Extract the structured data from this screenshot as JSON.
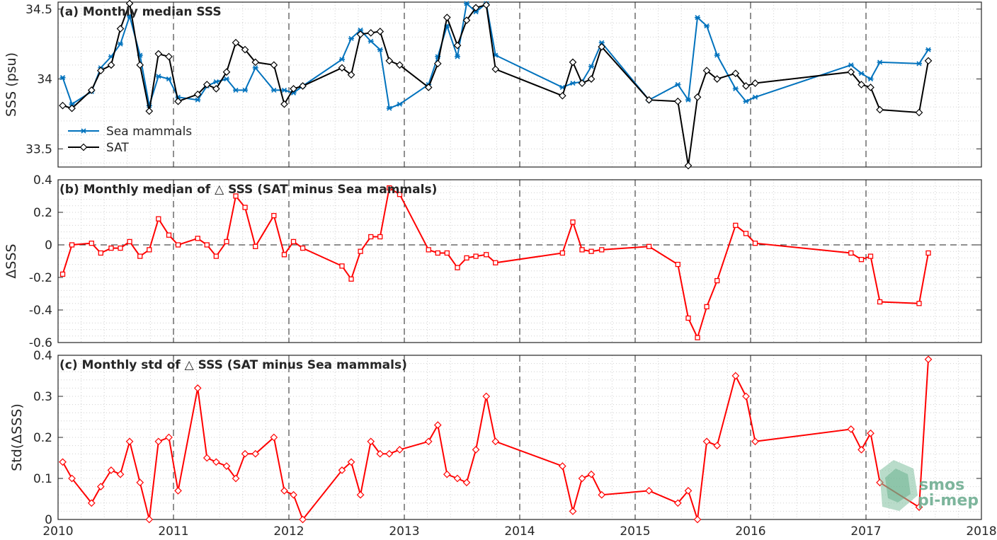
{
  "colors": {
    "sea_mammals": "#0072BD",
    "sat": "#000000",
    "delta": "#FF0000",
    "grid": "#d0d0d0",
    "axis": "#262626"
  },
  "logo": {
    "line1": "smos",
    "line2": "pi-mep"
  },
  "chart_data": [
    {
      "type": "line",
      "title": "(a) Monthly median SSS",
      "ylabel": "SSS (psu)",
      "xlim": [
        2010,
        2018
      ],
      "ylim": [
        33.37,
        34.55
      ],
      "yticks": [
        33.5,
        34,
        34.5
      ],
      "ytick_labels": [
        "33.5",
        "34",
        "34.5"
      ],
      "xticks": [
        2010,
        2011,
        2012,
        2013,
        2014,
        2015,
        2016,
        2017,
        2018
      ],
      "xtick_labels": [],
      "legend": {
        "position": "bottom-left"
      },
      "series": [
        {
          "name": "Sea mammals",
          "marker": "asterisk",
          "color": "#0072BD",
          "points": [
            [
              2010.04,
              34.01
            ],
            [
              2010.12,
              33.82
            ],
            [
              2010.29,
              33.91
            ],
            [
              2010.37,
              34.08
            ],
            [
              2010.46,
              34.16
            ],
            [
              2010.54,
              34.25
            ],
            [
              2010.62,
              34.45
            ],
            [
              2010.71,
              34.17
            ],
            [
              2010.79,
              33.81
            ],
            [
              2010.87,
              34.02
            ],
            [
              2010.96,
              34.0
            ],
            [
              2011.04,
              33.87
            ],
            [
              2011.21,
              33.85
            ],
            [
              2011.29,
              33.95
            ],
            [
              2011.37,
              33.98
            ],
            [
              2011.46,
              34.0
            ],
            [
              2011.54,
              33.92
            ],
            [
              2011.62,
              33.92
            ],
            [
              2011.71,
              34.08
            ],
            [
              2011.87,
              33.92
            ],
            [
              2011.96,
              33.92
            ],
            [
              2012.04,
              33.9
            ],
            [
              2012.12,
              33.95
            ],
            [
              2012.46,
              34.14
            ],
            [
              2012.54,
              34.29
            ],
            [
              2012.62,
              34.35
            ],
            [
              2012.71,
              34.27
            ],
            [
              2012.79,
              34.21
            ],
            [
              2012.87,
              33.79
            ],
            [
              2012.96,
              33.82
            ],
            [
              2013.21,
              33.96
            ],
            [
              2013.29,
              34.16
            ],
            [
              2013.37,
              34.38
            ],
            [
              2013.46,
              34.16
            ],
            [
              2013.54,
              34.54
            ],
            [
              2013.62,
              34.48
            ],
            [
              2013.71,
              34.54
            ],
            [
              2013.79,
              34.17
            ],
            [
              2014.37,
              33.94
            ],
            [
              2014.46,
              33.97
            ],
            [
              2014.54,
              33.98
            ],
            [
              2014.62,
              34.09
            ],
            [
              2014.71,
              34.26
            ],
            [
              2015.12,
              33.85
            ],
            [
              2015.37,
              33.96
            ],
            [
              2015.46,
              33.85
            ],
            [
              2015.54,
              34.44
            ],
            [
              2015.62,
              34.38
            ],
            [
              2015.71,
              34.17
            ],
            [
              2015.87,
              33.93
            ],
            [
              2015.96,
              33.84
            ],
            [
              2016.04,
              33.87
            ],
            [
              2016.87,
              34.1
            ],
            [
              2016.96,
              34.04
            ],
            [
              2017.04,
              34.0
            ],
            [
              2017.12,
              34.12
            ],
            [
              2017.46,
              34.11
            ],
            [
              2017.54,
              34.21
            ]
          ]
        },
        {
          "name": "SAT",
          "marker": "diamond",
          "color": "#000000",
          "points": [
            [
              2010.04,
              33.81
            ],
            [
              2010.12,
              33.79
            ],
            [
              2010.29,
              33.92
            ],
            [
              2010.37,
              34.06
            ],
            [
              2010.46,
              34.1
            ],
            [
              2010.54,
              34.36
            ],
            [
              2010.62,
              34.54
            ],
            [
              2010.71,
              34.1
            ],
            [
              2010.79,
              33.77
            ],
            [
              2010.87,
              34.18
            ],
            [
              2010.96,
              34.16
            ],
            [
              2011.04,
              33.84
            ],
            [
              2011.21,
              33.89
            ],
            [
              2011.29,
              33.96
            ],
            [
              2011.37,
              33.93
            ],
            [
              2011.46,
              34.05
            ],
            [
              2011.54,
              34.26
            ],
            [
              2011.62,
              34.21
            ],
            [
              2011.71,
              34.12
            ],
            [
              2011.87,
              34.1
            ],
            [
              2011.96,
              33.82
            ],
            [
              2012.04,
              33.93
            ],
            [
              2012.12,
              33.95
            ],
            [
              2012.46,
              34.08
            ],
            [
              2012.54,
              34.03
            ],
            [
              2012.62,
              34.32
            ],
            [
              2012.71,
              34.33
            ],
            [
              2012.79,
              34.34
            ],
            [
              2012.87,
              34.13
            ],
            [
              2012.96,
              34.1
            ],
            [
              2013.21,
              33.94
            ],
            [
              2013.29,
              34.11
            ],
            [
              2013.37,
              34.44
            ],
            [
              2013.46,
              34.24
            ],
            [
              2013.54,
              34.42
            ],
            [
              2013.62,
              34.51
            ],
            [
              2013.71,
              34.53
            ],
            [
              2013.79,
              34.07
            ],
            [
              2014.37,
              33.88
            ],
            [
              2014.46,
              34.12
            ],
            [
              2014.54,
              33.97
            ],
            [
              2014.62,
              34.0
            ],
            [
              2014.71,
              34.23
            ],
            [
              2015.12,
              33.85
            ],
            [
              2015.37,
              33.84
            ],
            [
              2015.46,
              33.38
            ],
            [
              2015.54,
              33.87
            ],
            [
              2015.62,
              34.06
            ],
            [
              2015.71,
              34.0
            ],
            [
              2015.87,
              34.04
            ],
            [
              2015.96,
              33.95
            ],
            [
              2016.04,
              33.97
            ],
            [
              2016.87,
              34.05
            ],
            [
              2016.96,
              33.96
            ],
            [
              2017.04,
              33.94
            ],
            [
              2017.12,
              33.78
            ],
            [
              2017.46,
              33.76
            ],
            [
              2017.54,
              34.13
            ]
          ]
        }
      ]
    },
    {
      "type": "line",
      "title": "(b) Monthly median of △ SSS (SAT minus Sea mammals)",
      "ylabel": "ΔSSS",
      "xlim": [
        2010,
        2018
      ],
      "ylim": [
        -0.6,
        0.4
      ],
      "yticks": [
        -0.6,
        -0.4,
        -0.2,
        0,
        0.2,
        0.4
      ],
      "ytick_labels": [
        "-0.6",
        "-0.4",
        "-0.2",
        "0",
        "0.2",
        "0.4"
      ],
      "xticks": [
        2010,
        2011,
        2012,
        2013,
        2014,
        2015,
        2016,
        2017,
        2018
      ],
      "xtick_labels": [],
      "zero_line": true,
      "series": [
        {
          "marker": "square",
          "color": "#FF0000",
          "points": [
            [
              2010.04,
              -0.18
            ],
            [
              2010.12,
              0.0
            ],
            [
              2010.29,
              0.01
            ],
            [
              2010.37,
              -0.05
            ],
            [
              2010.46,
              -0.02
            ],
            [
              2010.54,
              -0.02
            ],
            [
              2010.62,
              0.02
            ],
            [
              2010.71,
              -0.07
            ],
            [
              2010.79,
              -0.03
            ],
            [
              2010.87,
              0.16
            ],
            [
              2010.96,
              0.06
            ],
            [
              2011.04,
              0.0
            ],
            [
              2011.21,
              0.04
            ],
            [
              2011.29,
              0.0
            ],
            [
              2011.37,
              -0.07
            ],
            [
              2011.46,
              0.02
            ],
            [
              2011.54,
              0.3
            ],
            [
              2011.62,
              0.23
            ],
            [
              2011.71,
              -0.01
            ],
            [
              2011.87,
              0.18
            ],
            [
              2011.96,
              -0.06
            ],
            [
              2012.04,
              0.02
            ],
            [
              2012.12,
              -0.02
            ],
            [
              2012.46,
              -0.13
            ],
            [
              2012.54,
              -0.21
            ],
            [
              2012.62,
              -0.04
            ],
            [
              2012.71,
              0.05
            ],
            [
              2012.79,
              0.05
            ],
            [
              2012.87,
              0.35
            ],
            [
              2012.96,
              0.31
            ],
            [
              2013.21,
              -0.03
            ],
            [
              2013.29,
              -0.05
            ],
            [
              2013.37,
              -0.05
            ],
            [
              2013.46,
              -0.14
            ],
            [
              2013.54,
              -0.08
            ],
            [
              2013.62,
              -0.07
            ],
            [
              2013.71,
              -0.06
            ],
            [
              2013.79,
              -0.11
            ],
            [
              2014.37,
              -0.05
            ],
            [
              2014.46,
              0.14
            ],
            [
              2014.54,
              -0.03
            ],
            [
              2014.62,
              -0.04
            ],
            [
              2014.71,
              -0.03
            ],
            [
              2015.12,
              -0.01
            ],
            [
              2015.37,
              -0.12
            ],
            [
              2015.46,
              -0.45
            ],
            [
              2015.54,
              -0.57
            ],
            [
              2015.62,
              -0.38
            ],
            [
              2015.71,
              -0.22
            ],
            [
              2015.87,
              0.12
            ],
            [
              2015.96,
              0.07
            ],
            [
              2016.04,
              0.01
            ],
            [
              2016.87,
              -0.05
            ],
            [
              2016.96,
              -0.09
            ],
            [
              2017.04,
              -0.07
            ],
            [
              2017.12,
              -0.35
            ],
            [
              2017.46,
              -0.36
            ],
            [
              2017.54,
              -0.05
            ]
          ]
        }
      ]
    },
    {
      "type": "line",
      "title": "(c) Monthly std of △ SSS (SAT minus Sea mammals)",
      "ylabel": "Std(ΔSSS)",
      "xlim": [
        2010,
        2018
      ],
      "ylim": [
        0,
        0.4
      ],
      "yticks": [
        0,
        0.1,
        0.2,
        0.3,
        0.4
      ],
      "ytick_labels": [
        "0",
        "0.1",
        "0.2",
        "0.3",
        "0.4"
      ],
      "xticks": [
        2010,
        2011,
        2012,
        2013,
        2014,
        2015,
        2016,
        2017,
        2018
      ],
      "xtick_labels": [
        "2010",
        "2011",
        "2012",
        "2013",
        "2014",
        "2015",
        "2016",
        "2017",
        "2018"
      ],
      "series": [
        {
          "marker": "diamond",
          "color": "#FF0000",
          "points": [
            [
              2010.04,
              0.14
            ],
            [
              2010.12,
              0.1
            ],
            [
              2010.29,
              0.04
            ],
            [
              2010.37,
              0.08
            ],
            [
              2010.46,
              0.12
            ],
            [
              2010.54,
              0.11
            ],
            [
              2010.62,
              0.19
            ],
            [
              2010.71,
              0.09
            ],
            [
              2010.79,
              0.0
            ],
            [
              2010.87,
              0.19
            ],
            [
              2010.96,
              0.2
            ],
            [
              2011.04,
              0.07
            ],
            [
              2011.21,
              0.32
            ],
            [
              2011.29,
              0.15
            ],
            [
              2011.37,
              0.14
            ],
            [
              2011.46,
              0.13
            ],
            [
              2011.54,
              0.1
            ],
            [
              2011.62,
              0.16
            ],
            [
              2011.71,
              0.16
            ],
            [
              2011.87,
              0.2
            ],
            [
              2011.96,
              0.07
            ],
            [
              2012.04,
              0.06
            ],
            [
              2012.12,
              0.0
            ],
            [
              2012.46,
              0.12
            ],
            [
              2012.54,
              0.14
            ],
            [
              2012.62,
              0.06
            ],
            [
              2012.71,
              0.19
            ],
            [
              2012.79,
              0.16
            ],
            [
              2012.87,
              0.16
            ],
            [
              2012.96,
              0.17
            ],
            [
              2013.21,
              0.19
            ],
            [
              2013.29,
              0.23
            ],
            [
              2013.37,
              0.11
            ],
            [
              2013.46,
              0.1
            ],
            [
              2013.54,
              0.09
            ],
            [
              2013.62,
              0.17
            ],
            [
              2013.71,
              0.3
            ],
            [
              2013.79,
              0.19
            ],
            [
              2014.37,
              0.13
            ],
            [
              2014.46,
              0.02
            ],
            [
              2014.54,
              0.1
            ],
            [
              2014.62,
              0.11
            ],
            [
              2014.71,
              0.06
            ],
            [
              2015.12,
              0.07
            ],
            [
              2015.37,
              0.04
            ],
            [
              2015.46,
              0.07
            ],
            [
              2015.54,
              0.0
            ],
            [
              2015.62,
              0.19
            ],
            [
              2015.71,
              0.18
            ],
            [
              2015.87,
              0.35
            ],
            [
              2015.96,
              0.3
            ],
            [
              2016.04,
              0.19
            ],
            [
              2016.87,
              0.22
            ],
            [
              2016.96,
              0.17
            ],
            [
              2017.04,
              0.21
            ],
            [
              2017.12,
              0.09
            ],
            [
              2017.46,
              0.03
            ],
            [
              2017.54,
              0.39
            ]
          ]
        }
      ]
    }
  ]
}
